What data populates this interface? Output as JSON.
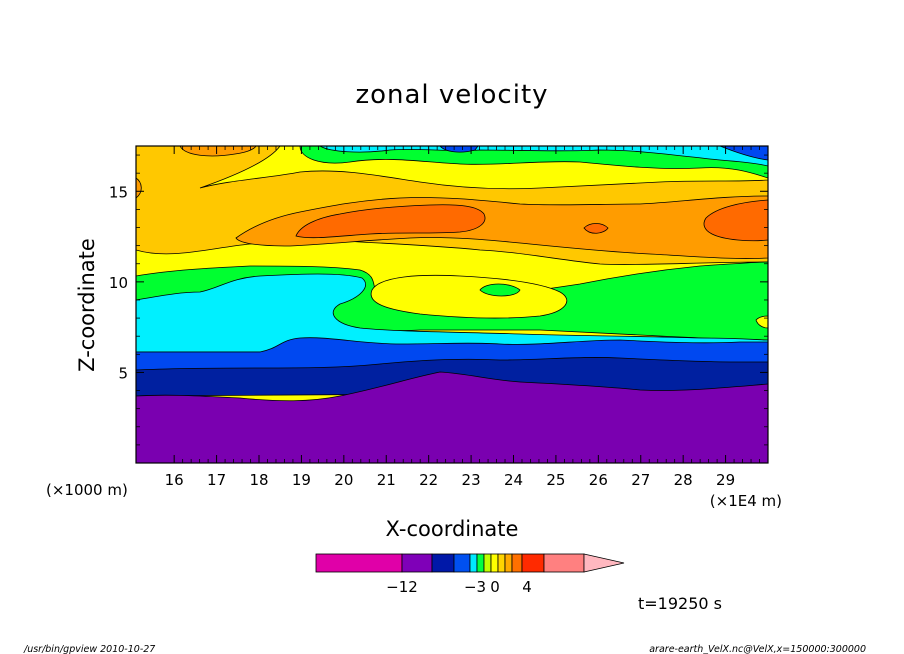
{
  "chart_data": {
    "type": "heatmap",
    "title": "zonal velocity",
    "xlabel": "X-coordinate",
    "ylabel": "Z-coordinate",
    "x_unit_note": "(×1E4 m)",
    "y_unit_note": "(×1000 m)",
    "x_ticks": [
      "16",
      "17",
      "18",
      "19",
      "20",
      "21",
      "22",
      "23",
      "24",
      "25",
      "26",
      "27",
      "28",
      "29"
    ],
    "y_ticks": [
      "5",
      "10",
      "15"
    ],
    "x_range": [
      15.1,
      30.0
    ],
    "y_range": [
      0,
      17.5
    ],
    "time_label": "t=19250 s",
    "colorbar": {
      "labels": [
        {
          "text": "−12",
          "pos": "-12"
        },
        {
          "text": "−3",
          "pos": "-3"
        },
        {
          "text": "0",
          "pos": "0"
        },
        {
          "text": "4",
          "pos": "4"
        }
      ],
      "colors": [
        "#e000a8",
        "#7f00b8",
        "#0018a8",
        "#0050f0",
        "#00e8ff",
        "#00ff40",
        "#c0ff00",
        "#ffff00",
        "#ffd400",
        "#ffaa00",
        "#ff7000",
        "#ff2a00",
        "#ff8080",
        "#ffb8c0"
      ]
    },
    "levels": [
      {
        "name": "purple",
        "color": "#7a00b0"
      },
      {
        "name": "dark-blue",
        "color": "#0020a0"
      },
      {
        "name": "blue",
        "color": "#0048f0"
      },
      {
        "name": "cyan",
        "color": "#00f0ff"
      },
      {
        "name": "green",
        "color": "#00ff30"
      },
      {
        "name": "yellow",
        "color": "#ffff00"
      },
      {
        "name": "light-orange",
        "color": "#ffc800"
      },
      {
        "name": "orange",
        "color": "#ff9c00"
      },
      {
        "name": "dark-orange",
        "color": "#ff6a00"
      }
    ]
  },
  "footer": {
    "left": "/usr/bin/gpview   2010-10-27",
    "right": "arare-earth_VelX.nc@VelX,x=150000:300000"
  }
}
